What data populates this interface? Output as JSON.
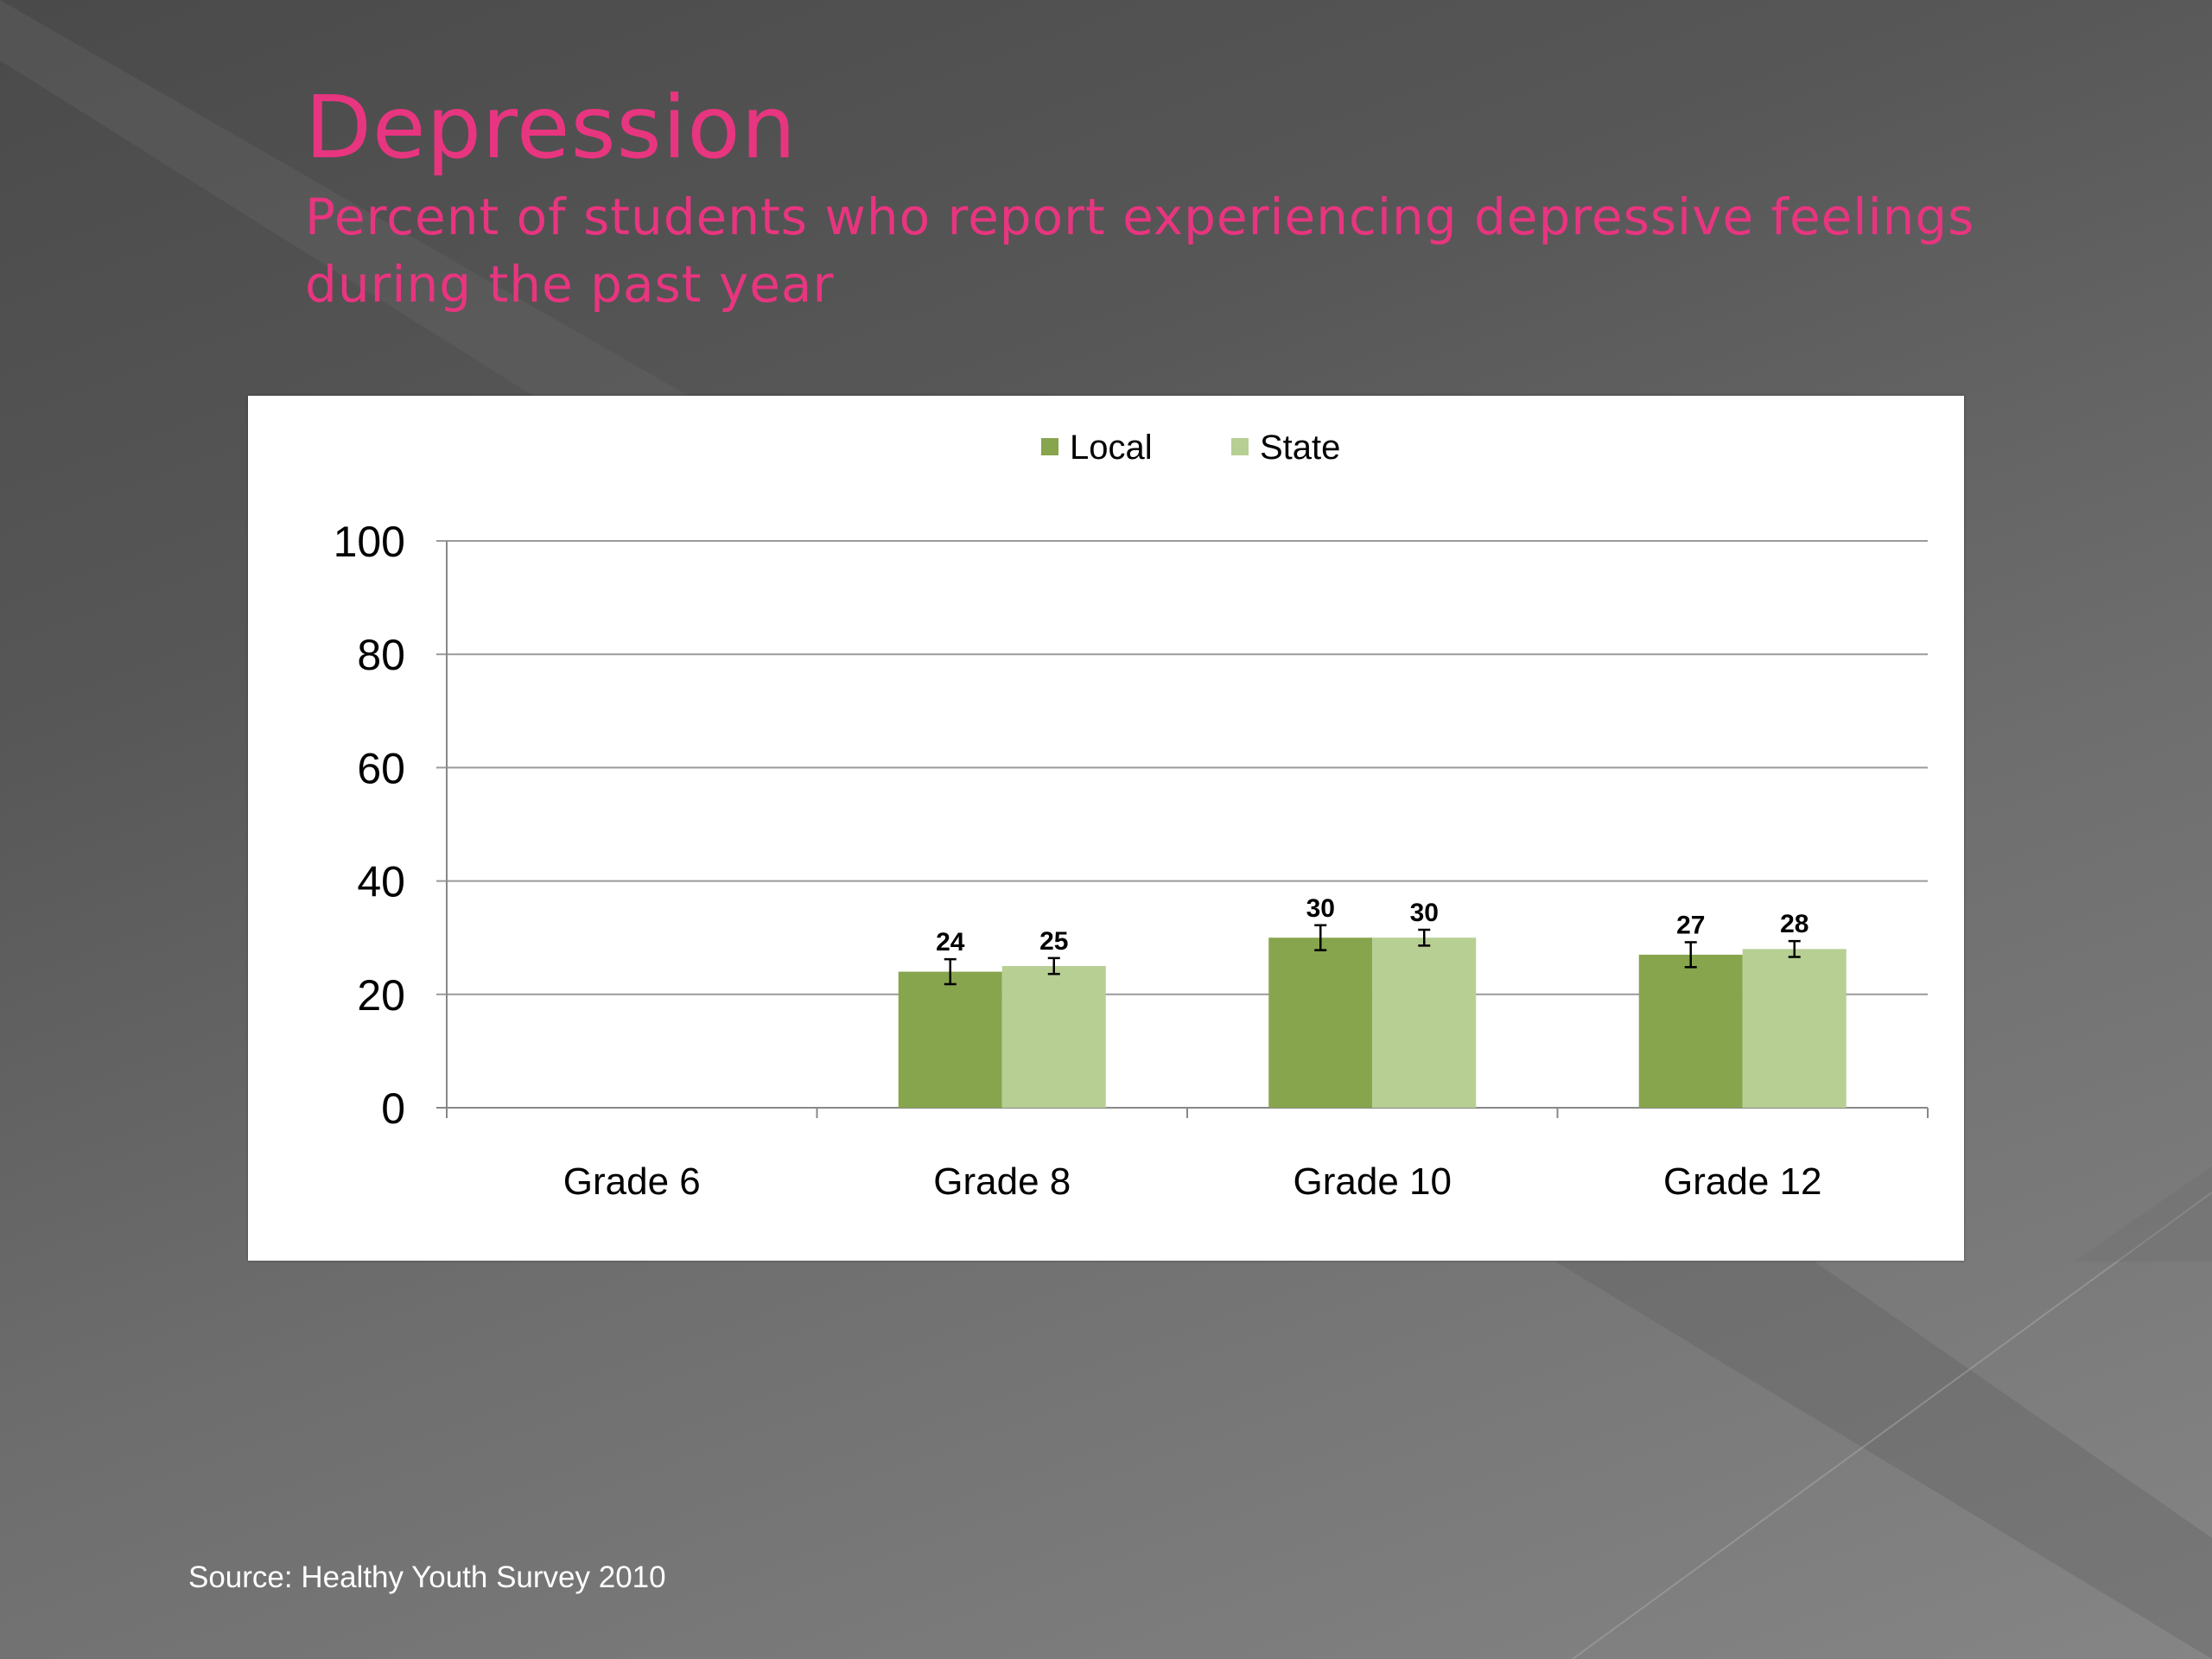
{
  "slide": {
    "title": "Depression",
    "subtitle": "Percent of students who report experiencing depressive feelings during the past year",
    "source": "Source: Healthy Youth Survey 2010"
  },
  "colors": {
    "title": "#e8357f",
    "local": "#87a54d",
    "state": "#b7cf93",
    "gridline": "#9a9a9a"
  },
  "chart_data": {
    "type": "bar",
    "title": "",
    "xlabel": "",
    "ylabel": "",
    "categories": [
      "Grade 6",
      "Grade 8",
      "Grade 10",
      "Grade 12"
    ],
    "series": [
      {
        "name": "Local",
        "values": [
          null,
          24,
          30,
          27
        ]
      },
      {
        "name": "State",
        "values": [
          null,
          25,
          30,
          28
        ]
      }
    ],
    "ylim": [
      0,
      100
    ],
    "yticks": [
      0,
      20,
      40,
      60,
      80,
      100
    ],
    "error_bars": true,
    "grid": true,
    "legend": "top-center"
  }
}
